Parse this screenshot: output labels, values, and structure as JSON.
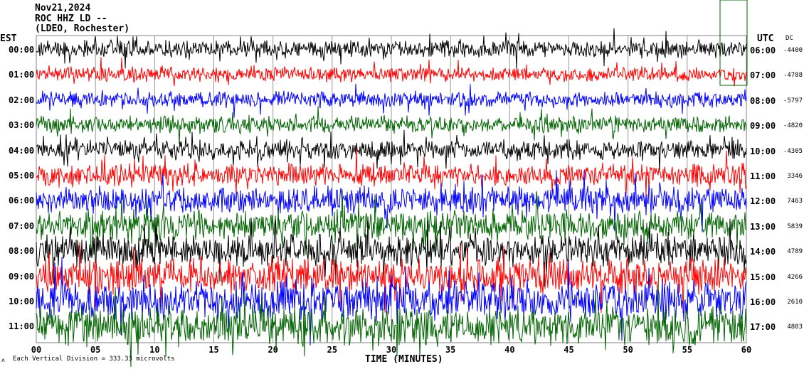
{
  "header": {
    "date": "Nov21,2024",
    "station": "ROC HHZ LD --",
    "network": "(LDEO, Rochester)"
  },
  "chart_data": {
    "type": "line",
    "left_axis_label": "EST",
    "right_axis_label": "UTC",
    "dc_label": "DC",
    "xlabel": "TIME (MINUTES)",
    "xlim": [
      0,
      60
    ],
    "x_ticks": [
      "00",
      "05",
      "10",
      "15",
      "20",
      "25",
      "30",
      "35",
      "40",
      "45",
      "50",
      "55",
      "60"
    ],
    "scale_note": "Each Vertical Division = 333.33 microvolts",
    "trace_colors": [
      "#000000",
      "#ff0000",
      "#0000ff",
      "#006400"
    ],
    "rows": [
      {
        "est": "00:00",
        "utc": "06:00",
        "dc": "-4400"
      },
      {
        "est": "01:00",
        "utc": "07:00",
        "dc": "-4788"
      },
      {
        "est": "02:00",
        "utc": "08:00",
        "dc": "-5797"
      },
      {
        "est": "03:00",
        "utc": "09:00",
        "dc": "-4820"
      },
      {
        "est": "04:00",
        "utc": "10:00",
        "dc": "-4305"
      },
      {
        "est": "05:00",
        "utc": "11:00",
        "dc": "3346"
      },
      {
        "est": "06:00",
        "utc": "12:00",
        "dc": "7463"
      },
      {
        "est": "07:00",
        "utc": "13:00",
        "dc": "5839"
      },
      {
        "est": "08:00",
        "utc": "14:00",
        "dc": "4789"
      },
      {
        "est": "09:00",
        "utc": "15:00",
        "dc": "4266"
      },
      {
        "est": "10:00",
        "utc": "16:00",
        "dc": "2610"
      },
      {
        "est": "11:00",
        "utc": "17:00",
        "dc": "4883"
      }
    ]
  }
}
